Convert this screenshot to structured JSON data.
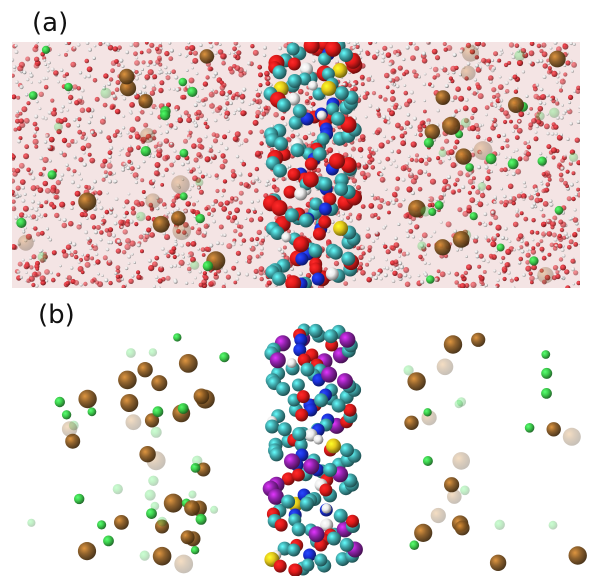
{
  "figure": {
    "panel_a_label": "(a)",
    "panel_b_label": "(b)"
  },
  "colors": {
    "water_oxygen": "#d9333a",
    "water_hydrogen": "#e8e8e8",
    "chloride": "#33cc44",
    "ion_brown": "#8a5a22",
    "dna_carbon": "#3fa5a8",
    "dna_oxygen": "#e01a1a",
    "dna_nitrogen": "#1a2fd6",
    "dna_hydrogen": "#ececec",
    "dna_phosphorus": "#e3c81a",
    "dna_phosphate_b": "#8e22a8"
  }
}
